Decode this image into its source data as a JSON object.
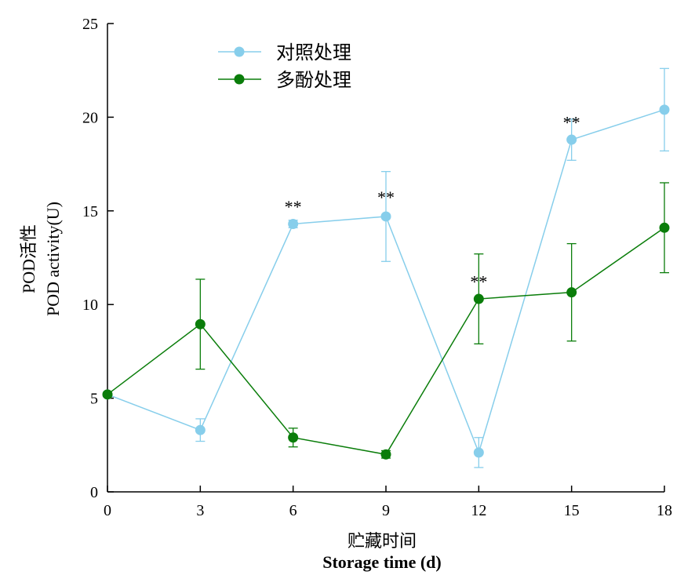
{
  "chart_data": {
    "type": "line",
    "xlabel_cn": "贮藏时间",
    "xlabel_en": "Storage time (d)",
    "ylabel_cn": "POD活性",
    "ylabel_en": "POD activity(U)",
    "x": [
      0,
      3,
      6,
      9,
      12,
      15,
      18
    ],
    "xlim": [
      0,
      18
    ],
    "ylim": [
      0,
      25
    ],
    "xticks": [
      "0",
      "3",
      "6",
      "9",
      "12",
      "15",
      "18"
    ],
    "yticks": [
      "0",
      "5",
      "10",
      "15",
      "20",
      "25"
    ],
    "grid": false,
    "legend_position": "top-left",
    "series": [
      {
        "name": "对照处理",
        "color": "#87ceeb",
        "values": [
          5.2,
          3.3,
          14.3,
          14.7,
          2.1,
          18.8,
          20.4
        ],
        "errors": [
          0.0,
          0.6,
          0.2,
          2.4,
          0.8,
          1.1,
          2.2
        ]
      },
      {
        "name": "多酚处理",
        "color": "#0a7d0a",
        "values": [
          5.2,
          8.95,
          2.9,
          2.0,
          10.3,
          10.65,
          14.1
        ],
        "errors": [
          0.0,
          2.4,
          0.5,
          0.2,
          2.4,
          2.6,
          2.4
        ]
      }
    ],
    "annotations": [
      {
        "text": "**",
        "x": 6,
        "y": 14.9
      },
      {
        "text": "**",
        "x": 9,
        "y": 15.4
      },
      {
        "text": "**",
        "x": 12,
        "y": 10.9
      },
      {
        "text": "**",
        "x": 15,
        "y": 19.4
      }
    ]
  }
}
